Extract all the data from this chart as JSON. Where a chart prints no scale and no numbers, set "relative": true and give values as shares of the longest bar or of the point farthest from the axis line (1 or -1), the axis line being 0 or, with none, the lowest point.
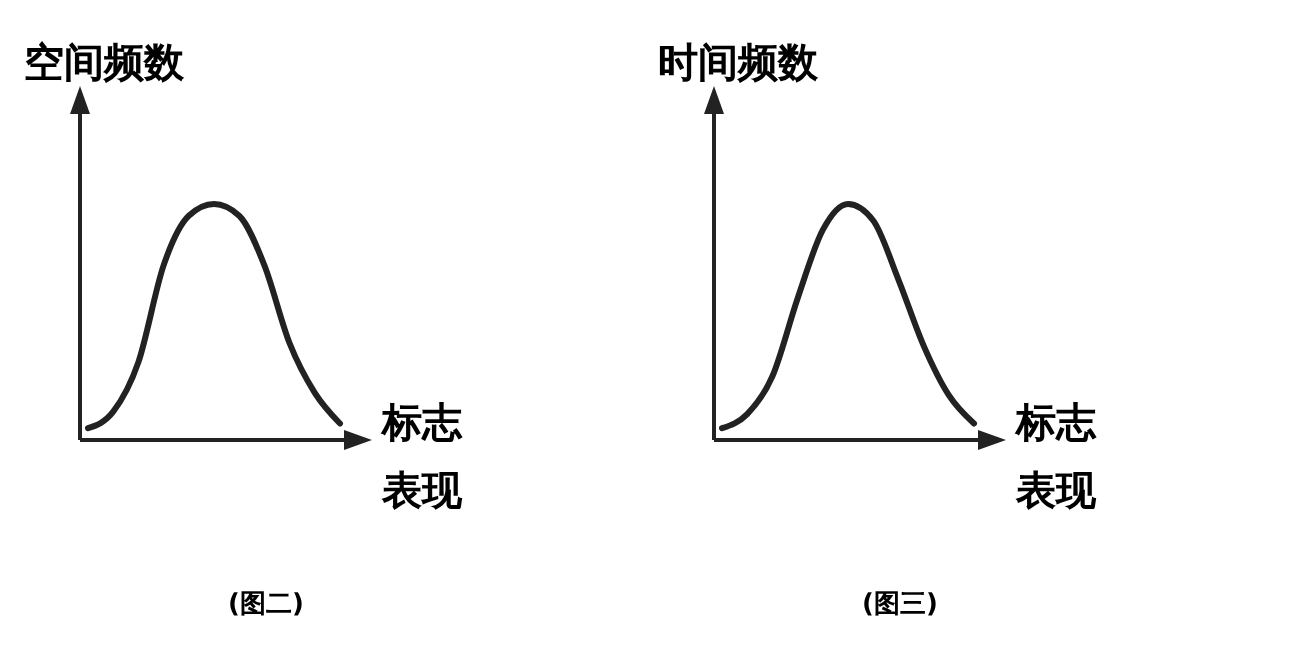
{
  "chart_data": [
    {
      "type": "line",
      "relative": true,
      "ylabel": "空间频数",
      "xlabel": "标志表现",
      "annotations": [
        "(图二)"
      ],
      "categories": [
        null,
        null,
        null,
        null,
        null,
        null,
        null,
        null,
        null,
        null,
        null
      ],
      "series": [
        {
          "color": "#222222",
          "values": [
            0.05,
            0.12,
            0.33,
            0.74,
            0.95,
            1,
            0.95,
            0.74,
            0.41,
            0.2,
            0.07
          ]
        }
      ]
    },
    {
      "type": "line",
      "relative": true,
      "ylabel": "时间频数",
      "xlabel": "标志表现",
      "annotations": [
        "(图三)"
      ],
      "categories": [
        null,
        null,
        null,
        null,
        null,
        null,
        null,
        null,
        null,
        null,
        null
      ],
      "series": [
        {
          "color": "#222222",
          "values": [
            0.05,
            0.11,
            0.27,
            0.6,
            0.89,
            1,
            0.93,
            0.68,
            0.4,
            0.19,
            0.07
          ]
        }
      ]
    }
  ]
}
